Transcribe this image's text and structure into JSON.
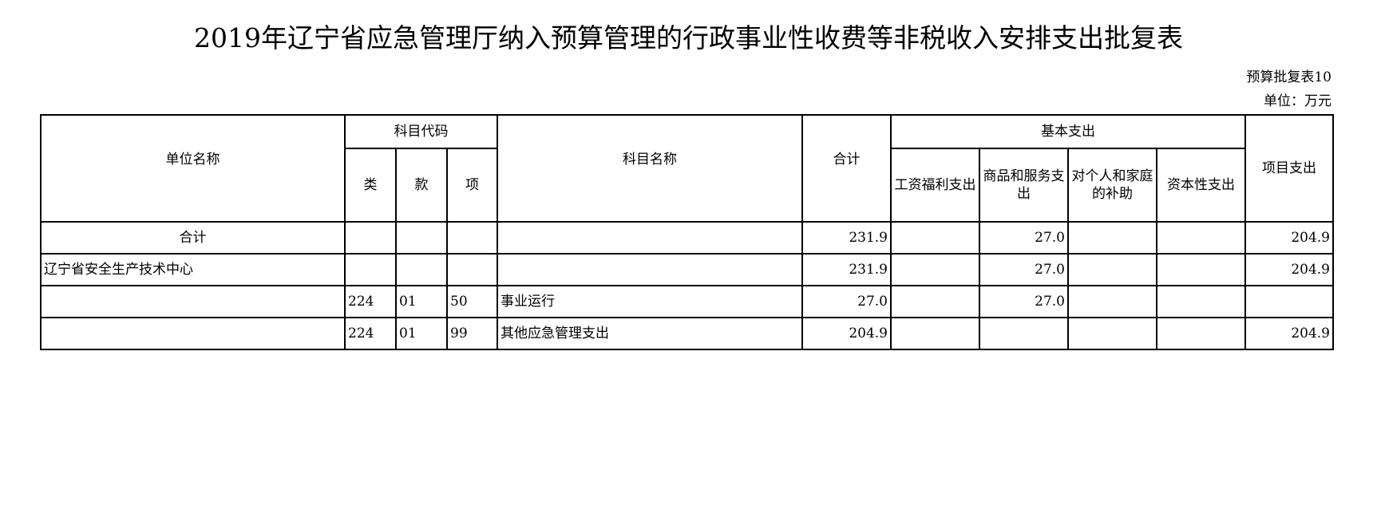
{
  "title": "2019年辽宁省应急管理厅纳入预算管理的行政事业性收费等非税收入安排支出批复表",
  "table_no": "预算批复表10",
  "unit": "单位：万元",
  "headers": {
    "unit_name": "单位名称",
    "subject_code": "科目代码",
    "lei": "类",
    "kuan": "款",
    "xiang": "项",
    "subject_name": "科目名称",
    "total": "合计",
    "basic": "基本支出",
    "wages": "工资福利支出",
    "goods": "商品和服务支出",
    "subsidy": "对个人和家庭的补助",
    "capital": "资本性支出",
    "project": "项目支出"
  },
  "rows": [
    {
      "unit": "合计",
      "lei": "",
      "kuan": "",
      "xiang": "",
      "name": "",
      "total": "231.9",
      "wages": "",
      "goods": "27.0",
      "subsidy": "",
      "capital": "",
      "project": "204.9"
    },
    {
      "unit": "辽宁省安全生产技术中心",
      "lei": "",
      "kuan": "",
      "xiang": "",
      "name": "",
      "total": "231.9",
      "wages": "",
      "goods": "27.0",
      "subsidy": "",
      "capital": "",
      "project": "204.9"
    },
    {
      "unit": "",
      "lei": "224",
      "kuan": "01",
      "xiang": "50",
      "name": "事业运行",
      "total": "27.0",
      "wages": "",
      "goods": "27.0",
      "subsidy": "",
      "capital": "",
      "project": ""
    },
    {
      "unit": "",
      "lei": "224",
      "kuan": "01",
      "xiang": "99",
      "name": "其他应急管理支出",
      "total": "204.9",
      "wages": "",
      "goods": "",
      "subsidy": "",
      "capital": "",
      "project": "204.9"
    }
  ]
}
